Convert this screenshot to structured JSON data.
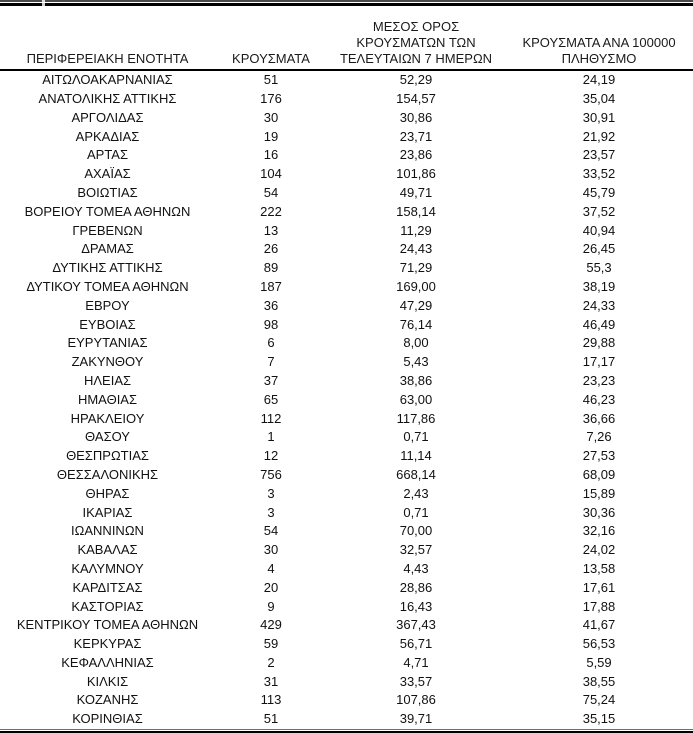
{
  "table": {
    "columns": [
      {
        "id": "region",
        "lines": [
          "ΠΕΡΙΦΕΡΕΙΑΚΗ ΕΝΟΤΗΤΑ"
        ]
      },
      {
        "id": "cases",
        "lines": [
          "ΚΡΟΥΣΜΑΤΑ"
        ]
      },
      {
        "id": "avg7",
        "lines": [
          "ΜΕΣΟΣ ΟΡΟΣ",
          "ΚΡΟΥΣΜΑΤΩΝ ΤΩΝ",
          "ΤΕΛΕΥΤΑΙΩΝ 7 ΗΜΕΡΩΝ"
        ]
      },
      {
        "id": "per100k",
        "lines": [
          "ΚΡΟΥΣΜΑΤΑ ΑΝΑ 100000",
          "ΠΛΗΘΥΣΜΟ"
        ]
      }
    ],
    "rows": [
      [
        "ΑΙΤΩΛΟΑΚΑΡΝΑΝΙΑΣ",
        "51",
        "52,29",
        "24,19"
      ],
      [
        "ΑΝΑΤΟΛΙΚΗΣ ΑΤΤΙΚΗΣ",
        "176",
        "154,57",
        "35,04"
      ],
      [
        "ΑΡΓΟΛΙΔΑΣ",
        "30",
        "30,86",
        "30,91"
      ],
      [
        "ΑΡΚΑΔΙΑΣ",
        "19",
        "23,71",
        "21,92"
      ],
      [
        "ΑΡΤΑΣ",
        "16",
        "23,86",
        "23,57"
      ],
      [
        "ΑΧΑΪΑΣ",
        "104",
        "101,86",
        "33,52"
      ],
      [
        "ΒΟΙΩΤΙΑΣ",
        "54",
        "49,71",
        "45,79"
      ],
      [
        "ΒΟΡΕΙΟΥ ΤΟΜΕΑ ΑΘΗΝΩΝ",
        "222",
        "158,14",
        "37,52"
      ],
      [
        "ΓΡΕΒΕΝΩΝ",
        "13",
        "11,29",
        "40,94"
      ],
      [
        "ΔΡΑΜΑΣ",
        "26",
        "24,43",
        "26,45"
      ],
      [
        "ΔΥΤΙΚΗΣ ΑΤΤΙΚΗΣ",
        "89",
        "71,29",
        "55,3"
      ],
      [
        "ΔΥΤΙΚΟΥ ΤΟΜΕΑ ΑΘΗΝΩΝ",
        "187",
        "169,00",
        "38,19"
      ],
      [
        "ΕΒΡΟΥ",
        "36",
        "47,29",
        "24,33"
      ],
      [
        "ΕΥΒΟΙΑΣ",
        "98",
        "76,14",
        "46,49"
      ],
      [
        "ΕΥΡΥΤΑΝΙΑΣ",
        "6",
        "8,00",
        "29,88"
      ],
      [
        "ΖΑΚΥΝΘΟΥ",
        "7",
        "5,43",
        "17,17"
      ],
      [
        "ΗΛΕΙΑΣ",
        "37",
        "38,86",
        "23,23"
      ],
      [
        "ΗΜΑΘΙΑΣ",
        "65",
        "63,00",
        "46,23"
      ],
      [
        "ΗΡΑΚΛΕΙΟΥ",
        "112",
        "117,86",
        "36,66"
      ],
      [
        "ΘΑΣΟΥ",
        "1",
        "0,71",
        "7,26"
      ],
      [
        "ΘΕΣΠΡΩΤΙΑΣ",
        "12",
        "11,14",
        "27,53"
      ],
      [
        "ΘΕΣΣΑΛΟΝΙΚΗΣ",
        "756",
        "668,14",
        "68,09"
      ],
      [
        "ΘΗΡΑΣ",
        "3",
        "2,43",
        "15,89"
      ],
      [
        "ΙΚΑΡΙΑΣ",
        "3",
        "0,71",
        "30,36"
      ],
      [
        "ΙΩΑΝΝΙΝΩΝ",
        "54",
        "70,00",
        "32,16"
      ],
      [
        "ΚΑΒΑΛΑΣ",
        "30",
        "32,57",
        "24,02"
      ],
      [
        "ΚΑΛΥΜΝΟΥ",
        "4",
        "4,43",
        "13,58"
      ],
      [
        "ΚΑΡΔΙΤΣΑΣ",
        "20",
        "28,86",
        "17,61"
      ],
      [
        "ΚΑΣΤΟΡΙΑΣ",
        "9",
        "16,43",
        "17,88"
      ],
      [
        "ΚΕΝΤΡΙΚΟΥ ΤΟΜΕΑ ΑΘΗΝΩΝ",
        "429",
        "367,43",
        "41,67"
      ],
      [
        "ΚΕΡΚΥΡΑΣ",
        "59",
        "56,71",
        "56,53"
      ],
      [
        "ΚΕΦΑΛΛΗΝΙΑΣ",
        "2",
        "4,71",
        "5,59"
      ],
      [
        "ΚΙΛΚΙΣ",
        "31",
        "33,57",
        "38,55"
      ],
      [
        "ΚΟΖΑΝΗΣ",
        "113",
        "107,86",
        "75,24"
      ],
      [
        "ΚΟΡΙΝΘΙΑΣ",
        "51",
        "39,71",
        "35,15"
      ]
    ]
  },
  "colors": {
    "text": "#111111",
    "rule": "#000000",
    "background": "#ffffff"
  }
}
